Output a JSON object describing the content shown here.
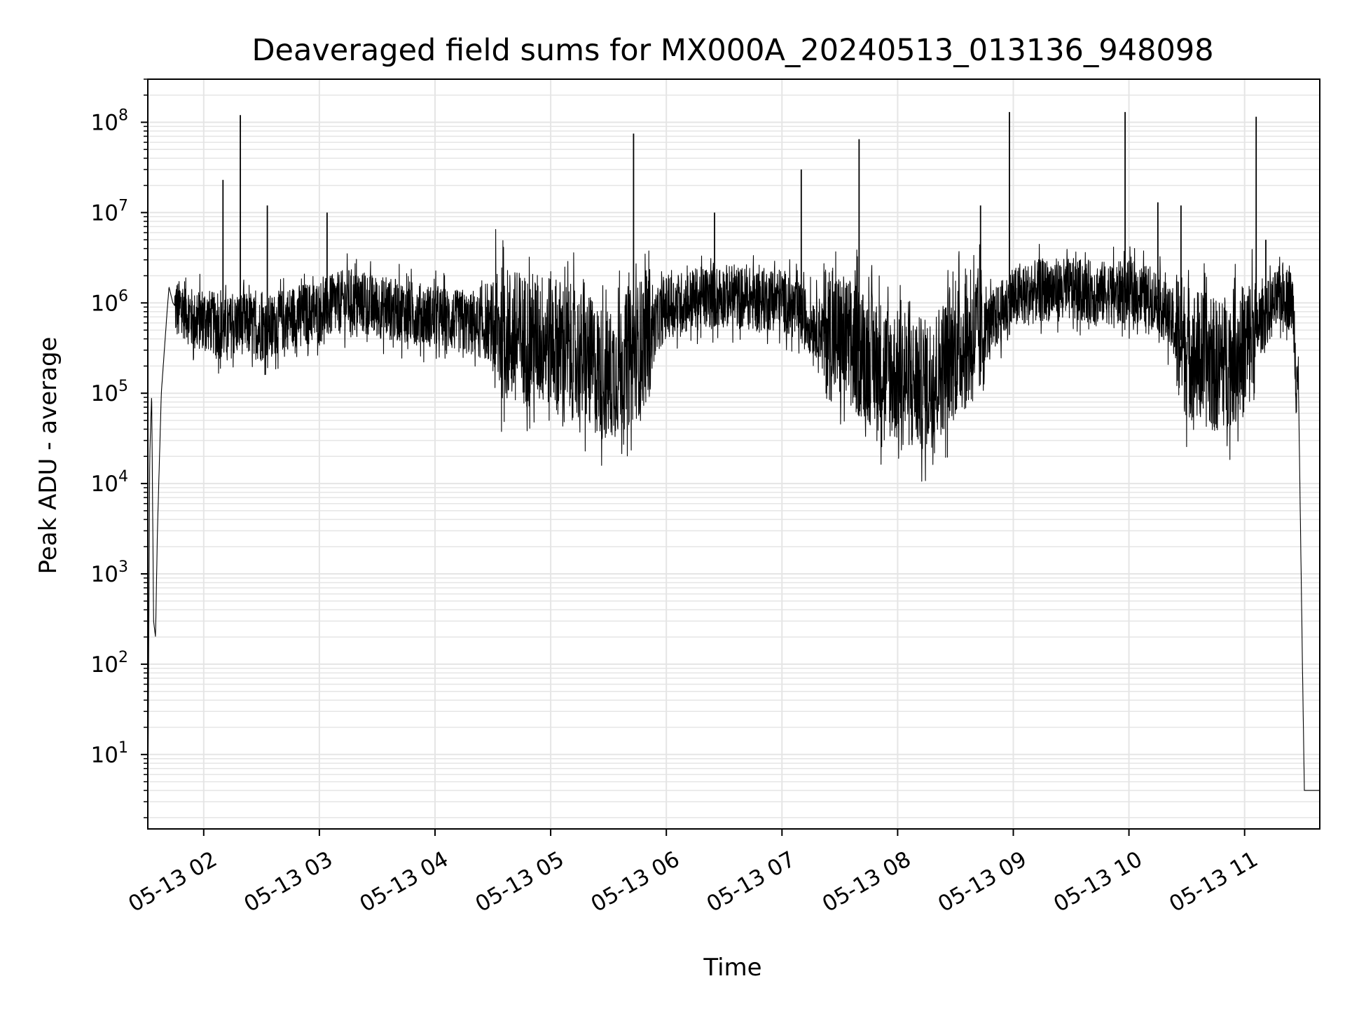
{
  "chart_data": {
    "type": "line",
    "title": "Deaveraged field sums for MX000A_20240513_013136_948098",
    "xlabel": "Time",
    "ylabel": "Peak ADU - average",
    "y_scale": "log",
    "ylim": [
      1.5,
      300000000
    ],
    "xlim": [
      "2024-05-13 01:31",
      "2024-05-13 11:39"
    ],
    "grid": true,
    "grid_minor": true,
    "line_color": "#000000",
    "grid_color": "#e5e5e5",
    "x_ticks": [
      {
        "at": "2024-05-13 02:00",
        "label": "05-13 02"
      },
      {
        "at": "2024-05-13 03:00",
        "label": "05-13 03"
      },
      {
        "at": "2024-05-13 04:00",
        "label": "05-13 04"
      },
      {
        "at": "2024-05-13 05:00",
        "label": "05-13 05"
      },
      {
        "at": "2024-05-13 06:00",
        "label": "05-13 06"
      },
      {
        "at": "2024-05-13 07:00",
        "label": "05-13 07"
      },
      {
        "at": "2024-05-13 08:00",
        "label": "05-13 08"
      },
      {
        "at": "2024-05-13 09:00",
        "label": "05-13 09"
      },
      {
        "at": "2024-05-13 10:00",
        "label": "05-13 10"
      },
      {
        "at": "2024-05-13 11:00",
        "label": "05-13 11"
      }
    ],
    "y_ticks": [
      {
        "value": 10,
        "base": "10",
        "exp": "1"
      },
      {
        "value": 100,
        "base": "10",
        "exp": "2"
      },
      {
        "value": 1000,
        "base": "10",
        "exp": "3"
      },
      {
        "value": 10000,
        "base": "10",
        "exp": "4"
      },
      {
        "value": 100000,
        "base": "10",
        "exp": "5"
      },
      {
        "value": 1000000,
        "base": "10",
        "exp": "6"
      },
      {
        "value": 10000000,
        "base": "10",
        "exp": "7"
      },
      {
        "value": 100000000,
        "base": "10",
        "exp": "8"
      }
    ],
    "series": [
      {
        "x": [
          "2024-05-13 01:31",
          "2024-05-13 01:32",
          "2024-05-13 01:33",
          "2024-05-13 01:34",
          "2024-05-13 01:35",
          "2024-05-13 01:36",
          "2024-05-13 01:38",
          "2024-05-13 01:41",
          "2024-05-13 01:42",
          "2024-05-13 01:44",
          "2024-05-13 01:47",
          "2024-05-13 01:50",
          "2024-05-13 01:55",
          "2024-05-13 02:00",
          "2024-05-13 02:10",
          "2024-05-13 02:20",
          "2024-05-13 02:30",
          "2024-05-13 02:45",
          "2024-05-13 03:00",
          "2024-05-13 03:15",
          "2024-05-13 03:30",
          "2024-05-13 03:45",
          "2024-05-13 04:00",
          "2024-05-13 04:15",
          "2024-05-13 04:30",
          "2024-05-13 04:45",
          "2024-05-13 05:00",
          "2024-05-13 05:15",
          "2024-05-13 05:30",
          "2024-05-13 05:45",
          "2024-05-13 06:00",
          "2024-05-13 06:15",
          "2024-05-13 06:30",
          "2024-05-13 06:45",
          "2024-05-13 07:00",
          "2024-05-13 07:15",
          "2024-05-13 07:30",
          "2024-05-13 07:45",
          "2024-05-13 08:00",
          "2024-05-13 08:15",
          "2024-05-13 08:30",
          "2024-05-13 08:45",
          "2024-05-13 09:00",
          "2024-05-13 09:15",
          "2024-05-13 09:30",
          "2024-05-13 09:45",
          "2024-05-13 10:00",
          "2024-05-13 10:15",
          "2024-05-13 10:30",
          "2024-05-13 10:45",
          "2024-05-13 11:00",
          "2024-05-13 11:10",
          "2024-05-13 11:20",
          "2024-05-13 11:25",
          "2024-05-13 11:28",
          "2024-05-13 11:30",
          "2024-05-13 11:31",
          "2024-05-13 11:32",
          "2024-05-13 11:34",
          "2024-05-13 11:39"
        ],
        "y": [
          2,
          20000,
          100000,
          300,
          200,
          3000,
          100000,
          800000,
          1500000,
          1000000,
          800000,
          900000,
          600000,
          700000,
          500000,
          600000,
          500000,
          700000,
          800000,
          1100000,
          900000,
          800000,
          700000,
          600000,
          500000,
          400000,
          400000,
          250000,
          150000,
          300000,
          900000,
          1100000,
          1200000,
          1100000,
          1100000,
          600000,
          400000,
          250000,
          150000,
          120000,
          300000,
          500000,
          1100000,
          1400000,
          1400000,
          1300000,
          1300000,
          1100000,
          300000,
          200000,
          300000,
          700000,
          1300000,
          1000000,
          100000,
          100,
          4,
          4,
          4,
          4
        ]
      }
    ],
    "spikes": [
      {
        "x": "2024-05-13 02:10",
        "y": 23000000
      },
      {
        "x": "2024-05-13 02:19",
        "y": 120000000
      },
      {
        "x": "2024-05-13 02:33",
        "y": 12000000
      },
      {
        "x": "2024-05-13 03:04",
        "y": 10000000
      },
      {
        "x": "2024-05-13 05:43",
        "y": 75000000
      },
      {
        "x": "2024-05-13 06:25",
        "y": 10000000
      },
      {
        "x": "2024-05-13 07:10",
        "y": 30000000
      },
      {
        "x": "2024-05-13 07:40",
        "y": 65000000
      },
      {
        "x": "2024-05-13 08:43",
        "y": 12000000
      },
      {
        "x": "2024-05-13 08:58",
        "y": 130000000
      },
      {
        "x": "2024-05-13 09:58",
        "y": 130000000
      },
      {
        "x": "2024-05-13 10:15",
        "y": 13000000
      },
      {
        "x": "2024-05-13 10:27",
        "y": 12000000
      },
      {
        "x": "2024-05-13 11:06",
        "y": 115000000
      },
      {
        "x": "2024-05-13 11:11",
        "y": 5000000
      }
    ]
  }
}
